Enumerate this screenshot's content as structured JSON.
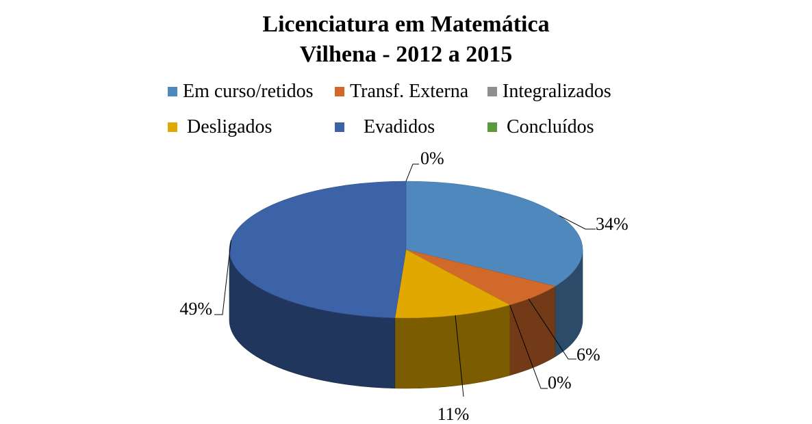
{
  "chart_data": {
    "type": "pie",
    "title": [
      "Licenciatura em Matemática",
      "Vilhena - 2012 a 2015"
    ],
    "legend_position": "top",
    "categories": [
      "Em curso/retidos",
      "Transf. Externa",
      "Integralizados",
      "Desligados",
      "Evadidos",
      "Concluídos"
    ],
    "values": [
      34,
      6,
      0,
      11,
      49,
      0
    ],
    "labels": [
      "34%",
      "6%",
      "0%",
      "11%",
      "49%",
      "0%"
    ],
    "colors": [
      "#4f88bd",
      "#d0692a",
      "#8f8f8f",
      "#e0a800",
      "#3c62a8",
      "#5b9a3c"
    ]
  }
}
